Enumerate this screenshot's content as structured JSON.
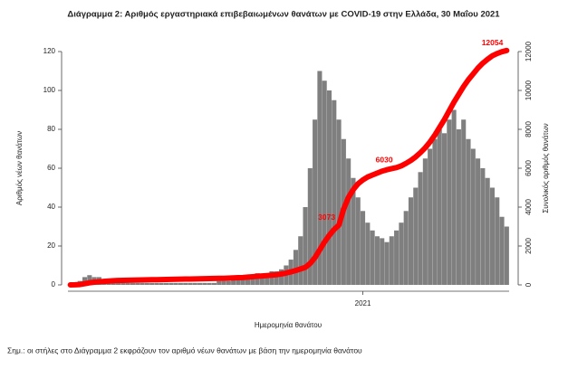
{
  "chart_data": {
    "type": "bar-line",
    "title": "Διάγραμμα 2: Αριθμός εργαστηριακά επιβεβαιωμένων θανάτων με COVID-19 στην Ελλάδα, 30 Μαΐου 2021",
    "xlabel": "Ημερομηνία θανάτου",
    "ylabel": "Αριθμός νέων θανάτων",
    "y2label": "Συνολικός αριθμός θανάτων",
    "note": "Σημ.: οι στήλες στο Διάγραμμα 2 εκφράζουν τον αριθμό νέων θανάτων με βάση την ημερομηνία θανάτου",
    "xlim": [
      -0.5,
      91.5
    ],
    "xticks": [
      {
        "value": 61,
        "label": "2021"
      }
    ],
    "ylim": [
      0,
      120
    ],
    "yticks": [
      0,
      20,
      40,
      60,
      80,
      100,
      120
    ],
    "y2lim": [
      0,
      12000
    ],
    "y2ticks": [
      0,
      2000,
      4000,
      6000,
      8000,
      10000,
      12000
    ],
    "series": [
      {
        "kind": "bar",
        "color": "#7f7f7f",
        "values": [
          0,
          1,
          2,
          4,
          5,
          4,
          4,
          3,
          3,
          2,
          2,
          1,
          1,
          1,
          1,
          1,
          1,
          1,
          1,
          1,
          1,
          1,
          1,
          1,
          1,
          1,
          1,
          1,
          1,
          1,
          1,
          2,
          2,
          2,
          3,
          3,
          3,
          4,
          5,
          6,
          5,
          6,
          7,
          7,
          8,
          10,
          13,
          18,
          25,
          40,
          60,
          85,
          110,
          105,
          100,
          95,
          85,
          75,
          65,
          55,
          45,
          38,
          32,
          28,
          25,
          24,
          22,
          25,
          28,
          32,
          38,
          45,
          50,
          58,
          65,
          70,
          75,
          80,
          78,
          85,
          90,
          80,
          85,
          75,
          70,
          65,
          60,
          55,
          50,
          45,
          35,
          30
        ]
      },
      {
        "kind": "line",
        "axis": "y2",
        "color": "#ff0000",
        "labeled_points": [
          56,
          68,
          91
        ],
        "values": [
          0,
          5,
          20,
          60,
          110,
          140,
          160,
          180,
          200,
          215,
          225,
          235,
          240,
          245,
          250,
          255,
          260,
          265,
          270,
          275,
          280,
          285,
          290,
          295,
          300,
          305,
          310,
          315,
          320,
          325,
          330,
          335,
          340,
          350,
          360,
          370,
          380,
          400,
          420,
          440,
          460,
          480,
          500,
          520,
          560,
          610,
          670,
          740,
          820,
          900,
          1100,
          1400,
          1800,
          2200,
          2550,
          2850,
          3073,
          3900,
          4500,
          4900,
          5200,
          5400,
          5550,
          5650,
          5750,
          5850,
          5920,
          5980,
          6030,
          6120,
          6250,
          6400,
          6580,
          6800,
          7050,
          7350,
          7700,
          8100,
          8500,
          8950,
          9400,
          9800,
          10200,
          10550,
          10850,
          11150,
          11400,
          11600,
          11780,
          11900,
          11990,
          12054
        ]
      }
    ]
  }
}
